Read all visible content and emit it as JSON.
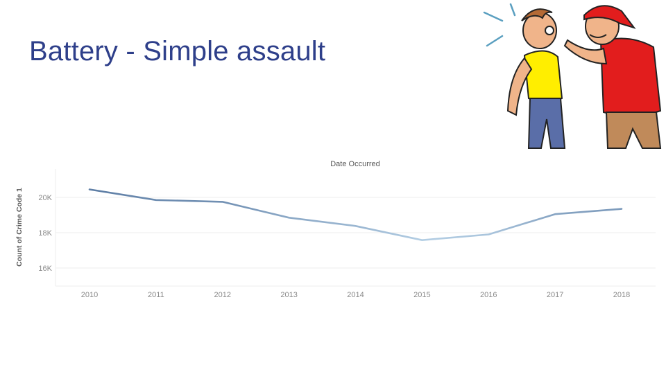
{
  "slide": {
    "title": "Battery - Simple assault"
  },
  "illustration": {
    "icon": "two-men-arguing-cartoon"
  },
  "chart_data": {
    "type": "line",
    "title": "Date Occurred",
    "xlabel": "",
    "ylabel": "Count of Crime Code 1",
    "x": [
      "2010",
      "2011",
      "2012",
      "2013",
      "2014",
      "2015",
      "2016",
      "2017",
      "2018"
    ],
    "series": [
      {
        "values": [
          20450,
          19850,
          19750,
          18850,
          18380,
          17580,
          17900,
          19050,
          19350
        ]
      }
    ],
    "ylim": [
      15000,
      21700
    ],
    "yticks": [
      16000,
      18000,
      20000
    ],
    "ytick_labels": [
      "16K",
      "18K",
      "20K"
    ],
    "grid": true,
    "colors": {
      "line_high": "#5f7fa6",
      "line_low": "#bcd6ea",
      "grid": "#ededed",
      "title": "#2e3f8a"
    }
  }
}
